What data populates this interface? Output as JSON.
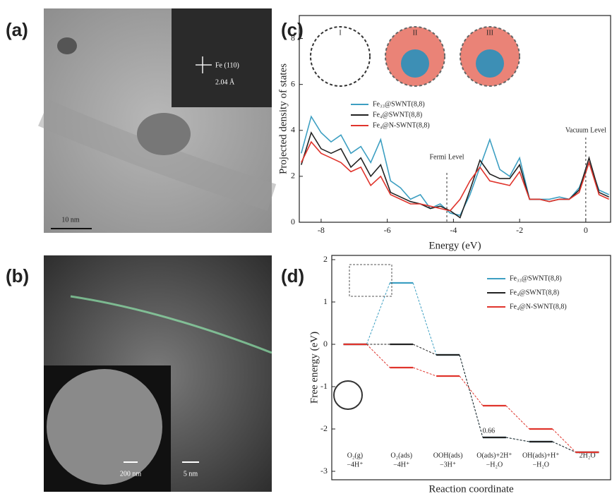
{
  "panel_a": {
    "label": "(a)",
    "inset_text": [
      "Fe (110)",
      "2.04 Å"
    ],
    "scale_bar": "10 nm"
  },
  "panel_b": {
    "label": "(b)",
    "scale_bars": [
      "200 nm",
      "5 nm"
    ]
  },
  "chart_data": [
    {
      "type": "line",
      "panel_label": "(c)",
      "y_label": "Projected density of states",
      "x_label": "Energy (eV)",
      "x": [
        -8.6,
        -8.3,
        -8.0,
        -7.7,
        -7.4,
        -7.1,
        -6.8,
        -6.5,
        -6.2,
        -5.9,
        -5.6,
        -5.3,
        -5.0,
        -4.7,
        -4.4,
        -4.1,
        -3.8,
        -3.5,
        -3.2,
        -2.9,
        -2.6,
        -2.3,
        -2.0,
        -1.7,
        -1.4,
        -1.1,
        -0.8,
        -0.5,
        -0.2,
        0.1,
        0.4,
        0.7
      ],
      "series": [
        {
          "name": "Fe₃₃@SWNT(8,8)",
          "color": "#3d9fc2",
          "values": [
            3.0,
            4.6,
            3.9,
            3.5,
            3.8,
            3.0,
            3.3,
            2.6,
            3.6,
            1.8,
            1.5,
            1.0,
            1.2,
            0.6,
            0.8,
            0.4,
            0.3,
            1.2,
            2.4,
            3.6,
            2.3,
            2.0,
            2.8,
            1.0,
            1.0,
            1.0,
            1.1,
            1.0,
            1.5,
            2.6,
            1.4,
            1.2
          ]
        },
        {
          "name": "Fe₄@SWNT(8,8)",
          "color": "#222222",
          "values": [
            2.5,
            3.9,
            3.2,
            3.0,
            3.2,
            2.4,
            2.8,
            2.0,
            2.5,
            1.3,
            1.1,
            0.9,
            0.8,
            0.6,
            0.7,
            0.5,
            0.2,
            1.4,
            2.7,
            2.1,
            1.9,
            1.9,
            2.5,
            1.0,
            1.0,
            0.9,
            1.0,
            1.0,
            1.4,
            2.8,
            1.3,
            1.1
          ]
        },
        {
          "name": "Fe₄@N-SWNT(8,8)",
          "color": "#e0342c",
          "values": [
            2.6,
            3.5,
            3.0,
            2.8,
            2.6,
            2.2,
            2.4,
            1.6,
            2.0,
            1.2,
            1.0,
            0.8,
            0.8,
            0.7,
            0.6,
            0.5,
            1.0,
            1.8,
            2.4,
            1.8,
            1.7,
            1.6,
            2.2,
            1.0,
            1.0,
            0.9,
            1.0,
            1.0,
            1.3,
            2.6,
            1.2,
            1.0
          ]
        }
      ],
      "xlim": [
        -8.66,
        0.75
      ],
      "ylim": [
        0,
        9
      ],
      "xticks": [
        -8,
        -6,
        -4,
        -2,
        0
      ],
      "yticks": [
        0,
        2,
        4,
        6,
        8
      ],
      "annotations": [
        {
          "text": "Fermi Level",
          "x": -4.2
        },
        {
          "text": "Vacuum Level",
          "x": 0
        }
      ],
      "insets": [
        "I",
        "II",
        "III"
      ]
    },
    {
      "type": "energy-profile",
      "panel_label": "(d)",
      "y_label": "Free energy (eV)",
      "x_label": "Reaction coordinate",
      "categories": [
        [
          "O₂(g)",
          "−4H⁺"
        ],
        [
          "O₂(ads)",
          "−4H⁺"
        ],
        [
          "OOH(ads)",
          "−3H⁺"
        ],
        [
          "O(ads)+2H⁺",
          "−H₂O"
        ],
        [
          "OH(ads)+H⁺",
          "−H₂O"
        ],
        [
          "2H₂O"
        ]
      ],
      "series": [
        {
          "name": "Fe₃₃@SWNT(8,8)",
          "color": "#3d9fc2",
          "values": [
            0,
            1.45,
            -0.25,
            -2.2,
            -2.3,
            -2.55
          ]
        },
        {
          "name": "Fe₄@SWNT(8,8)",
          "color": "#222222",
          "values": [
            0,
            0,
            -0.25,
            -2.2,
            -2.3,
            -2.55
          ]
        },
        {
          "name": "Fe₄@N-SWNT(8,8)",
          "color": "#e0342c",
          "values": [
            0,
            -0.55,
            -0.75,
            -1.45,
            -2.0,
            -2.55
          ]
        }
      ],
      "ylim": [
        -3.2,
        2.1
      ],
      "yticks": [
        -3,
        -2,
        -1,
        0,
        1,
        2
      ],
      "annotations": [
        "0.66"
      ]
    }
  ]
}
